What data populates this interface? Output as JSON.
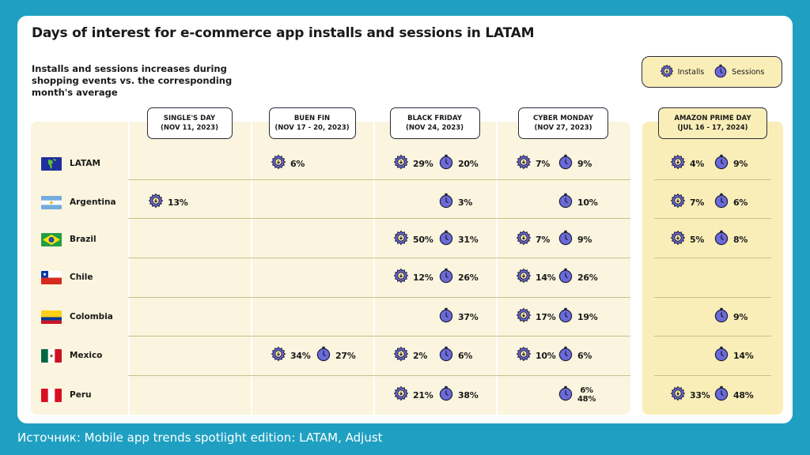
{
  "title": "Days of interest for e-commerce app installs and sessions in LATAM",
  "subtitle": "Installs and sessions increases during shopping events vs. the corresponding month's average",
  "legend": {
    "installs": "Installs",
    "sessions": "Sessions"
  },
  "source": "Источник: Mobile app trends spotlight edition: LATAM, Adjust",
  "colors": {
    "background": "#1fa0c2",
    "panel": "#fbf4de",
    "amazon_panel": "#faeeb8",
    "icon_fill": "#6a6ad8"
  },
  "events": [
    {
      "name": "SINGLE'S DAY",
      "dates": "(NOV 11, 2023)"
    },
    {
      "name": "BUEN FIN",
      "dates": "(NOV 17 - 20, 2023)"
    },
    {
      "name": "BLACK FRIDAY",
      "dates": "(NOV 24, 2023)"
    },
    {
      "name": "CYBER MONDAY",
      "dates": "(NOV 27, 2023)"
    },
    {
      "name": "AMAZON PRIME DAY",
      "dates": "(JUL 16 - 17, 2024)"
    }
  ],
  "countries": [
    "LATAM",
    "Argentina",
    "Brazil",
    "Chile",
    "Colombia",
    "Mexico",
    "Peru"
  ],
  "chart_data": {
    "type": "table",
    "title": "Days of interest for e-commerce app installs and sessions in LATAM",
    "subtitle": "Installs and sessions increases during shopping events vs. the corresponding month's average",
    "columns": [
      "SINGLE'S DAY",
      "BUEN FIN",
      "BLACK FRIDAY",
      "CYBER MONDAY",
      "AMAZON PRIME DAY"
    ],
    "rows": [
      {
        "country": "LATAM",
        "cells": [
          null,
          {
            "installs": "6%"
          },
          {
            "installs": "29%",
            "sessions": "20%"
          },
          {
            "installs": "7%",
            "sessions": "9%"
          },
          {
            "installs": "4%",
            "sessions": "9%"
          }
        ]
      },
      {
        "country": "Argentina",
        "cells": [
          {
            "installs": "13%"
          },
          null,
          {
            "sessions": "3%"
          },
          {
            "sessions": "10%"
          },
          {
            "installs": "7%",
            "sessions": "6%"
          }
        ]
      },
      {
        "country": "Brazil",
        "cells": [
          null,
          null,
          {
            "installs": "50%",
            "sessions": "31%"
          },
          {
            "installs": "7%",
            "sessions": "9%"
          },
          {
            "installs": "5%",
            "sessions": "8%"
          }
        ]
      },
      {
        "country": "Chile",
        "cells": [
          null,
          null,
          {
            "installs": "12%",
            "sessions": "26%"
          },
          {
            "installs": "14%",
            "sessions": "26%"
          },
          null
        ]
      },
      {
        "country": "Colombia",
        "cells": [
          null,
          null,
          {
            "sessions": "37%"
          },
          {
            "installs": "17%",
            "sessions": "19%"
          },
          {
            "sessions": "9%"
          }
        ]
      },
      {
        "country": "Mexico",
        "cells": [
          null,
          {
            "installs": "34%",
            "sessions": "27%"
          },
          {
            "installs": "2%",
            "sessions": "6%"
          },
          {
            "installs": "10%",
            "sessions": "6%"
          },
          {
            "sessions": "14%"
          }
        ]
      },
      {
        "country": "Peru",
        "cells": [
          null,
          null,
          {
            "installs": "21%",
            "sessions": "38%"
          },
          {
            "sessions": "6%\n48%"
          },
          {
            "installs": "33%",
            "sessions": "48%"
          }
        ]
      }
    ]
  }
}
